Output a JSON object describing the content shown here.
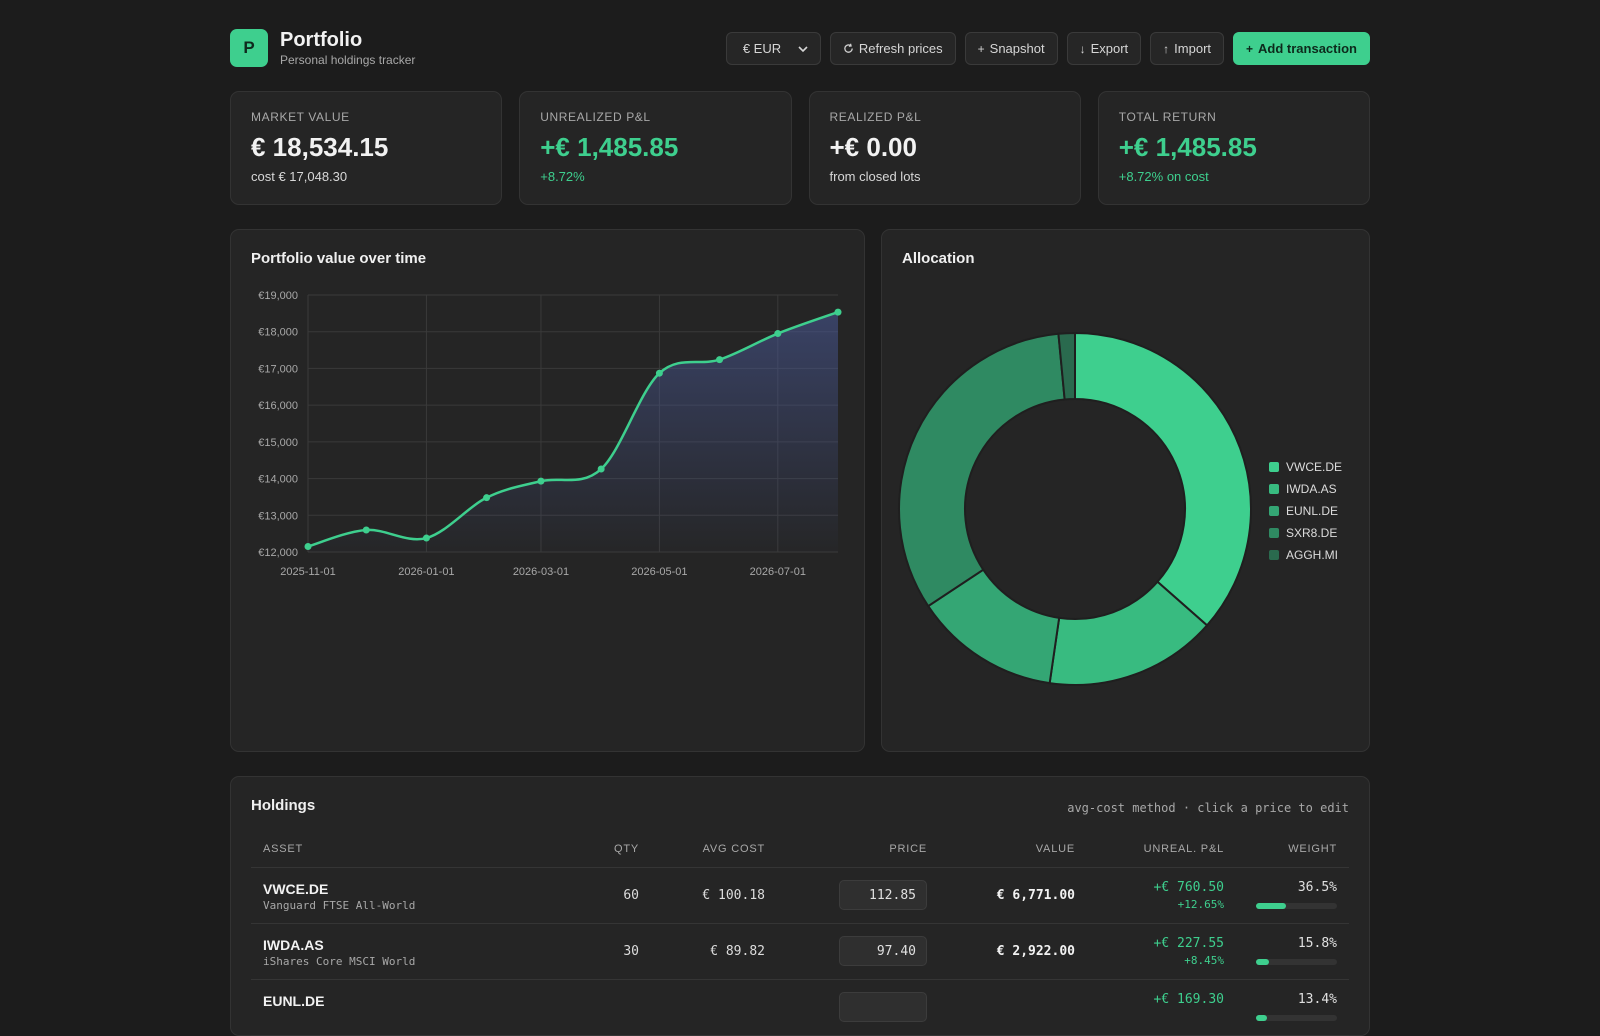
{
  "app": {
    "logo_letter": "P",
    "title": "Portfolio",
    "subtitle": "Personal holdings tracker"
  },
  "toolbar": {
    "currency": "€ EUR",
    "refresh_label": "Refresh prices",
    "snapshot_label": "Snapshot",
    "export_label": "Export",
    "import_label": "Import",
    "add_label": "Add transaction"
  },
  "icons": {
    "logo": "logo-badge",
    "refresh": "refresh-icon",
    "snapshot": "plus-icon",
    "export": "arrow-down-icon",
    "import": "arrow-up-icon",
    "add": "plus-icon",
    "currency": "chevron-down-icon"
  },
  "colors": {
    "accent": "#3ecf8e",
    "background": "#1c1c1c",
    "panel": "#252525",
    "positive": "#3ecf8e"
  },
  "stats": [
    {
      "label": "MARKET VALUE",
      "value": "€ 18,534.15",
      "sub": "cost € 17,048.30",
      "positive": false
    },
    {
      "label": "UNREALIZED P&L",
      "value": "+€ 1,485.85",
      "sub": "+8.72%",
      "positive": true
    },
    {
      "label": "REALIZED P&L",
      "value": "+€ 0.00",
      "sub": "from closed lots",
      "positive": false
    },
    {
      "label": "TOTAL RETURN",
      "value": "+€ 1,485.85",
      "sub": "+8.72% on cost",
      "positive": true
    }
  ],
  "value_chart": {
    "title": "Portfolio value over time"
  },
  "allocation": {
    "title": "Allocation"
  },
  "chart_data": [
    {
      "type": "area",
      "title": "Portfolio value over time",
      "x": [
        "2025-11-01",
        "2025-12-01",
        "2026-01-01",
        "2026-02-01",
        "2026-03-01",
        "2026-04-01",
        "2026-05-01",
        "2026-06-01",
        "2026-07-01",
        "2026-08-01"
      ],
      "y": [
        12150,
        12600,
        12380,
        13480,
        13930,
        14260,
        16870,
        17240,
        17950,
        18534.15
      ],
      "ylim": [
        12000,
        19000
      ],
      "yticks": [
        12000,
        13000,
        14000,
        15000,
        16000,
        17000,
        18000,
        19000
      ],
      "ytick_labels": [
        "€12,000",
        "€13,000",
        "€14,000",
        "€15,000",
        "€16,000",
        "€17,000",
        "€18,000",
        "€19,000"
      ],
      "xticks": [
        "2025-11-01",
        "2026-01-01",
        "2026-03-01",
        "2026-05-01",
        "2026-07-01"
      ],
      "grid": true,
      "line_color": "#3ecf8e"
    },
    {
      "type": "pie",
      "title": "Allocation",
      "donut": true,
      "labels": [
        "VWCE.DE",
        "IWDA.AS",
        "EUNL.DE",
        "SXR8.DE",
        "AGGH.MI"
      ],
      "values": [
        36.5,
        15.8,
        13.4,
        32.8,
        1.5
      ],
      "colors": [
        "#3ecf8e",
        "#38bb80",
        "#34a674",
        "#2f8a62",
        "#2a6a4e"
      ],
      "legend_position": "right"
    }
  ],
  "holdings": {
    "title": "Holdings",
    "note": "avg-cost method · click a price to edit",
    "columns": [
      "ASSET",
      "QTY",
      "AVG COST",
      "PRICE",
      "VALUE",
      "UNREAL. P&L",
      "WEIGHT"
    ],
    "rows": [
      {
        "symbol": "VWCE.DE",
        "name": "Vanguard FTSE All-World",
        "qty": "60",
        "avg_cost": "€ 100.18",
        "price": "112.85",
        "value": "€ 6,771.00",
        "pnl": "+€ 760.50",
        "pnl_pct": "+12.65%",
        "weight": "36.5%",
        "weight_frac": 0.365
      },
      {
        "symbol": "IWDA.AS",
        "name": "iShares Core MSCI World",
        "qty": "30",
        "avg_cost": "€ 89.82",
        "price": "97.40",
        "value": "€ 2,922.00",
        "pnl": "+€ 227.55",
        "pnl_pct": "+8.45%",
        "weight": "15.8%",
        "weight_frac": 0.158
      },
      {
        "symbol": "EUNL.DE",
        "name": "",
        "qty": "",
        "avg_cost": "",
        "price": "",
        "value": "",
        "pnl": "+€ 169.30",
        "pnl_pct": "",
        "weight": "13.4%",
        "weight_frac": 0.134
      }
    ]
  }
}
